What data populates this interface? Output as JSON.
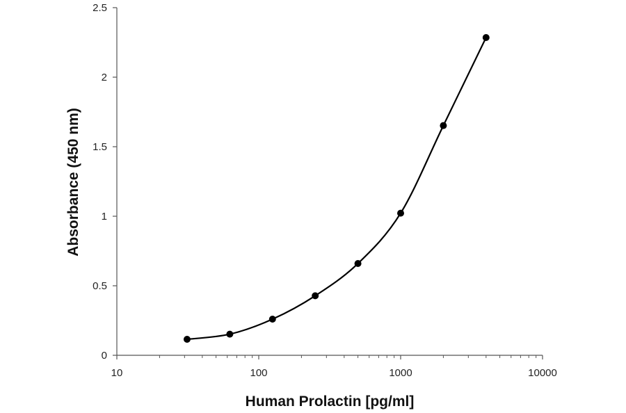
{
  "chart_data": {
    "type": "scatter",
    "title": "",
    "xlabel": "Human Prolactin [pg/ml]",
    "ylabel": "Absorbance (450 nm)",
    "x_scale": "log",
    "xlim": [
      10,
      10000
    ],
    "ylim": [
      0,
      2.5
    ],
    "x_ticks": [
      "10",
      "100",
      "1000",
      "10000"
    ],
    "y_ticks": [
      "0",
      "0.5",
      "1",
      "1.5",
      "2",
      "2.5"
    ],
    "grid": false,
    "legend": "none",
    "series": [
      {
        "x": [
          31.25,
          62.5,
          125,
          250,
          500,
          1000,
          2000,
          4000
        ],
        "y": [
          0.115,
          0.152,
          0.26,
          0.428,
          0.66,
          1.022,
          1.652,
          2.285
        ],
        "style": "smooth line with markers",
        "color": "#000000"
      }
    ]
  }
}
